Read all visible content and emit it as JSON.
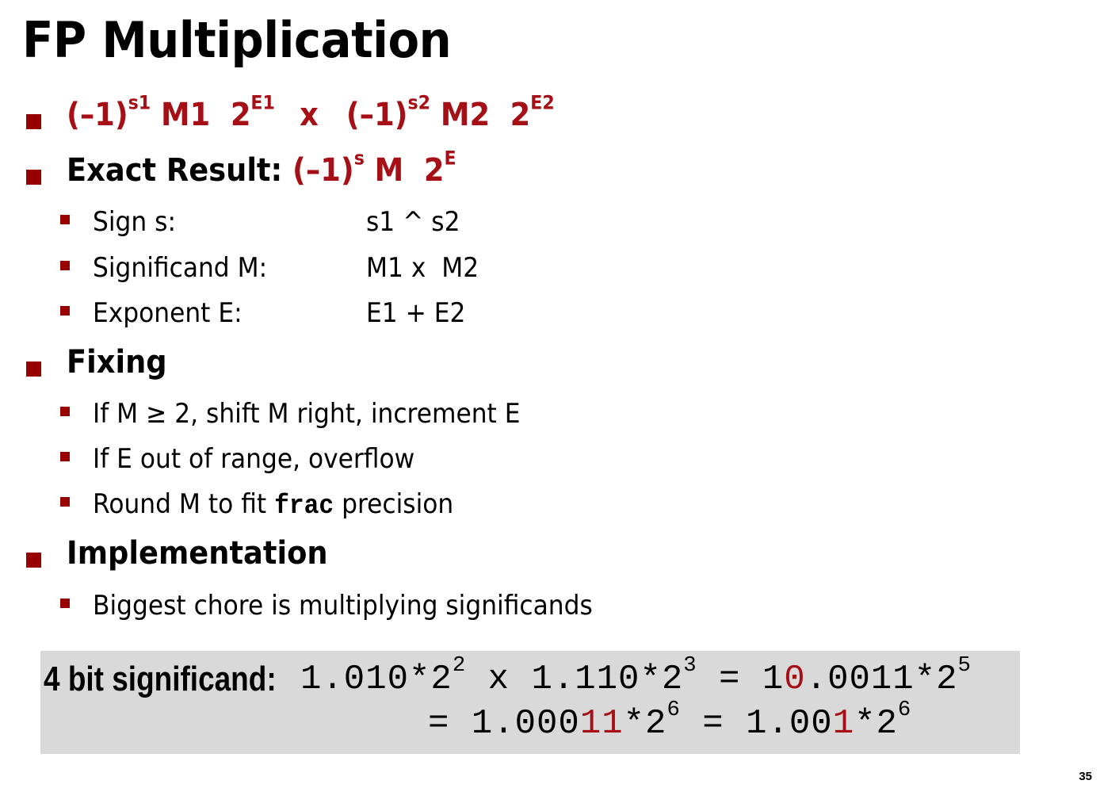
{
  "title": "FP Multiplication",
  "formula": {
    "part1_base": "(–1)",
    "part1_sign_exp": "s1",
    "part1_m": " M1  2",
    "part1_e": "E1",
    "times": "x",
    "part2_base": "(–1)",
    "part2_sign_exp": "s2",
    "part2_m": " M2  2",
    "part2_e": "E2"
  },
  "exact_result": {
    "label": "Exact Result: ",
    "base": "(–1)",
    "sign_exp": "s",
    "m": " M  2",
    "e": "E",
    "items": [
      {
        "label": "Sign s:",
        "value": "s1 ^ s2"
      },
      {
        "label": "Significand M:",
        "value": "M1 x  M2"
      },
      {
        "label": "Exponent E:",
        "value": "E1 + E2"
      }
    ]
  },
  "fixing": {
    "label": "Fixing",
    "items": [
      "If M ≥ 2, shift M right, increment E",
      "If E out of range, overflow"
    ],
    "round_prefix": "Round M to fit ",
    "round_code": "frac",
    "round_suffix": " precision"
  },
  "implementation": {
    "label": "Implementation",
    "items": [
      "Biggest chore is multiplying significands"
    ]
  },
  "example": {
    "label": "4 bit significand:",
    "line1": {
      "a": "1.010*2",
      "a_exp": "2",
      "times": " x ",
      "b": "1.110*2",
      "b_exp": "3",
      "eq": " = ",
      "c_pre": "1",
      "c_red": "0",
      "c_post": ".0011*2",
      "c_exp": "5"
    },
    "line2": {
      "eq1": "= ",
      "d_pre": "1.000",
      "d_red": "11",
      "d_post": "*2",
      "d_exp": "6",
      "eq2": " = ",
      "e_pre": "1.00",
      "e_red": "1",
      "e_post": "*2",
      "e_exp": "6"
    }
  },
  "page_number": "35",
  "colors": {
    "accent": "#a50f15",
    "bullet": "#990000",
    "box": "#d9d9d9"
  }
}
